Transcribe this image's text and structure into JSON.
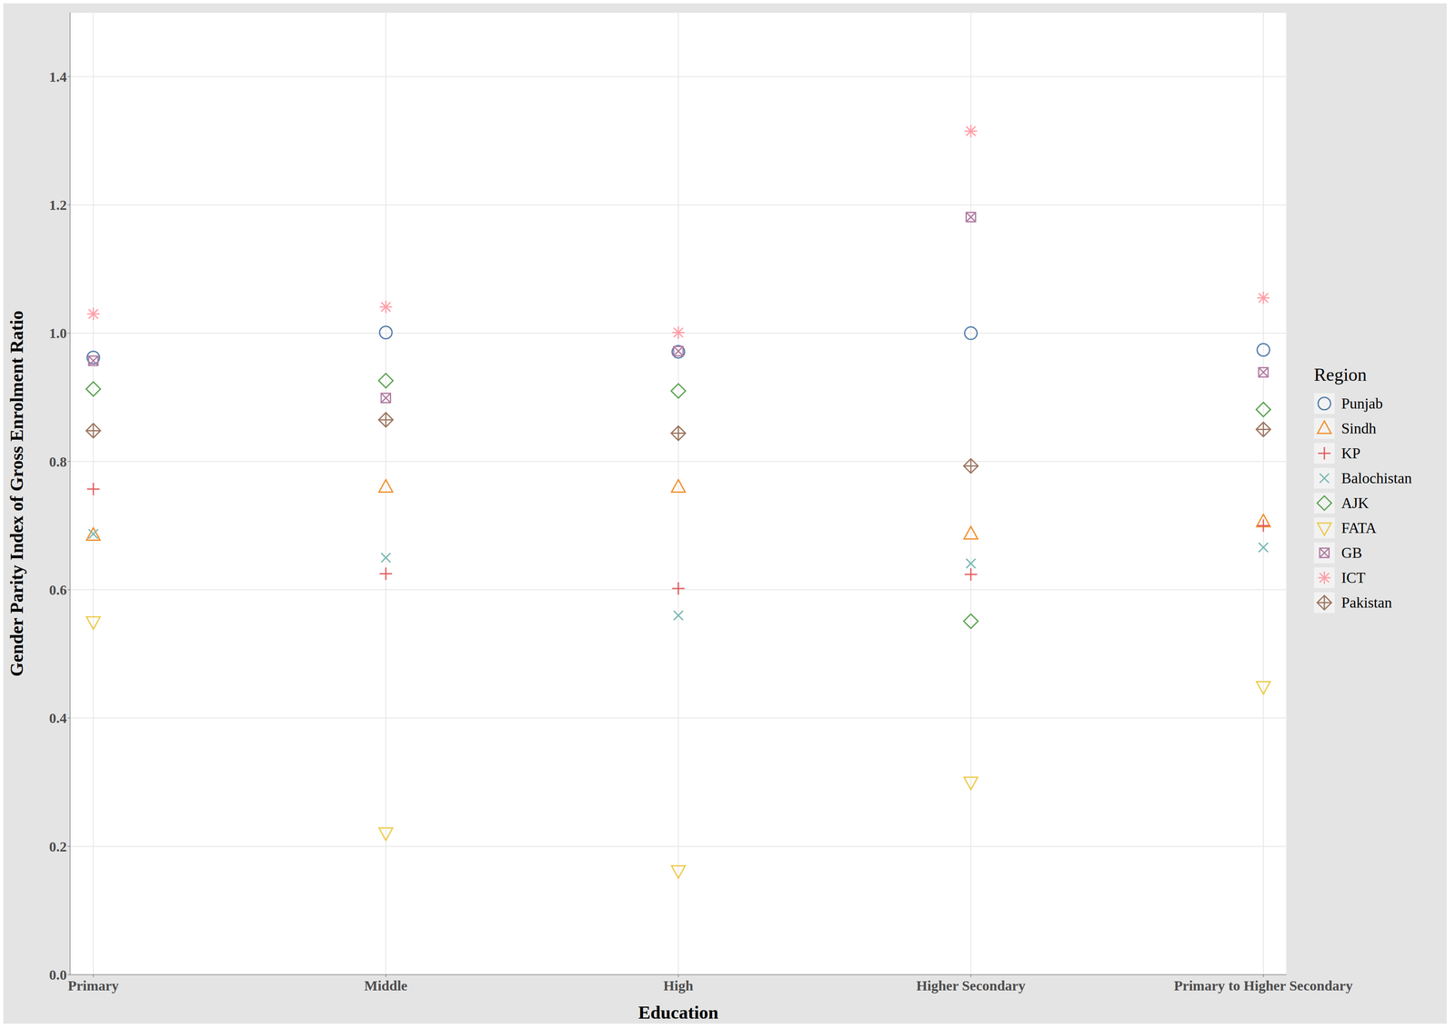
{
  "chart_data": {
    "type": "scatter",
    "x_label": "Education",
    "y_label": "Gender Parity Index of Gross Enrolment Ratio",
    "legend_title": "Region",
    "categories": [
      "Primary",
      "Middle",
      "High",
      "Higher Secondary",
      "Primary to Higher Secondary"
    ],
    "ylim": [
      0,
      1.5
    ],
    "yticks": [
      {
        "value": 0,
        "label": "0.0"
      },
      0.2,
      0.4,
      0.6,
      0.8,
      {
        "value": 1,
        "label": "1.0"
      },
      1.2,
      1.4
    ],
    "grid": true,
    "legend": "right",
    "series": [
      {
        "name": "Punjab",
        "color": "#4e79a7",
        "marker": "circle",
        "values": [
          0.962,
          1.001,
          0.971,
          1.0,
          0.974
        ]
      },
      {
        "name": "Sindh",
        "color": "#f28e2b",
        "marker": "triangle",
        "values": [
          0.685,
          0.76,
          0.76,
          0.687,
          0.706
        ]
      },
      {
        "name": "KP",
        "color": "#e15759",
        "marker": "plus",
        "values": [
          0.757,
          0.625,
          0.602,
          0.624,
          0.7
        ]
      },
      {
        "name": "Balochistan",
        "color": "#76b7b2",
        "marker": "x",
        "values": [
          0.687,
          0.65,
          0.56,
          0.641,
          0.666
        ]
      },
      {
        "name": "AJK",
        "color": "#59a14f",
        "marker": "diamond",
        "values": [
          0.913,
          0.926,
          0.91,
          0.551,
          0.881
        ]
      },
      {
        "name": "FATA",
        "color": "#edc948",
        "marker": "triangle_down",
        "values": [
          0.55,
          0.221,
          0.162,
          0.3,
          0.449
        ]
      },
      {
        "name": "GB",
        "color": "#b07aa1",
        "marker": "square_x",
        "values": [
          0.957,
          0.899,
          0.972,
          1.181,
          0.939
        ]
      },
      {
        "name": "ICT",
        "color": "#ff9da7",
        "marker": "asterisk",
        "values": [
          1.03,
          1.041,
          1.001,
          1.315,
          1.055
        ]
      },
      {
        "name": "Pakistan",
        "color": "#9c755f",
        "marker": "diamond_plus",
        "values": [
          0.848,
          0.865,
          0.844,
          0.793,
          0.85
        ]
      }
    ]
  }
}
